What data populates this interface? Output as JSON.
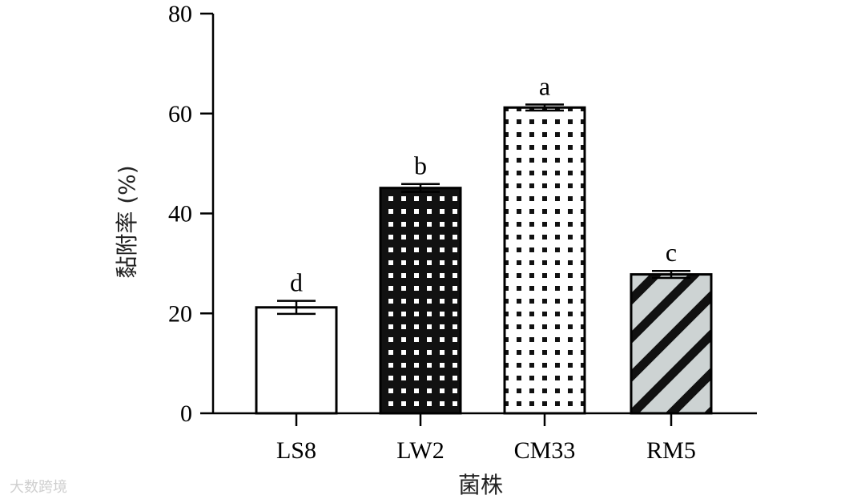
{
  "chart_data": {
    "type": "bar",
    "categories": [
      "LS8",
      "LW2",
      "CM33",
      "RM5"
    ],
    "values": [
      21.2,
      45.1,
      61.2,
      27.8
    ],
    "errors": [
      1.3,
      0.8,
      0.6,
      0.7
    ],
    "significance": [
      "d",
      "b",
      "a",
      "c"
    ],
    "patterns": [
      "white",
      "black-dots",
      "white-dots",
      "grey-stripes"
    ],
    "xlabel": "菌株",
    "ylabel": "黏附率 (%)",
    "ylim": [
      0,
      80
    ],
    "yticks": [
      0,
      20,
      40,
      60,
      80
    ],
    "grid": false
  },
  "watermark": "大数跨境"
}
